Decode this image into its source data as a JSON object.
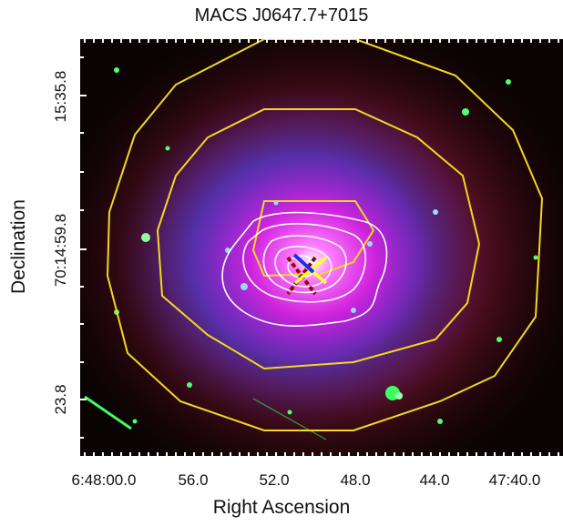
{
  "figure": {
    "title": "MACS J0647.7+7015",
    "xlabel": "Right Ascension",
    "ylabel": "Declination",
    "xticks": [
      "6:48:00.0",
      "56.0",
      "52.0",
      "48.0",
      "44.0",
      "47:40.0"
    ],
    "yticks": [
      "15:35.8",
      "70:14:59.8",
      "23.8"
    ]
  },
  "colors": {
    "xray_contours": "#ffffff",
    "lensing_contours": "#f2d81e",
    "xray_peak_marker": "#1a2cff",
    "bcg_marker": "#ffff33",
    "sz_marker": "#8b0a0a",
    "background": "#000000"
  }
}
